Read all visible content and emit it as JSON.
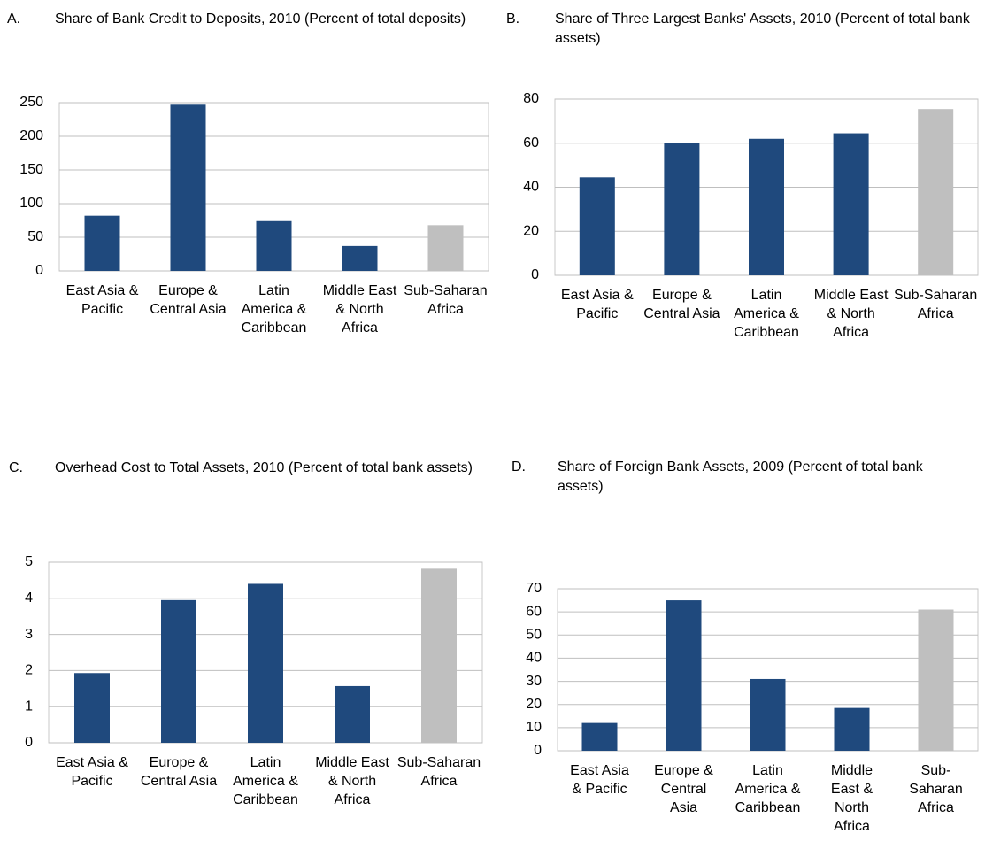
{
  "chart_data": [
    {
      "type": "bar",
      "panel": "A.",
      "title": "Share of Bank Credit to Deposits, 2010 (Percent of total deposits)",
      "categories": [
        "East Asia & Pacific",
        "Europe & Central Asia",
        "Latin America & Caribbean",
        "Middle East & North Africa",
        "Sub-Saharan Africa"
      ],
      "values": [
        82,
        247,
        74,
        37,
        68
      ],
      "colors": [
        "#1f497d",
        "#1f497d",
        "#1f497d",
        "#1f497d",
        "#bfbfbf"
      ],
      "ylim": [
        0,
        250
      ],
      "yticks": [
        0,
        50,
        100,
        150,
        200,
        250
      ],
      "grid": true
    },
    {
      "type": "bar",
      "panel": "B.",
      "title": "Share of Three Largest Banks' Assets, 2010 (Percent of total bank assets)",
      "categories": [
        "East Asia & Pacific",
        "Europe & Central Asia",
        "Latin America & Caribbean",
        "Middle East & North Africa",
        "Sub-Saharan Africa"
      ],
      "values": [
        44.5,
        60,
        62,
        64.5,
        75.5
      ],
      "colors": [
        "#1f497d",
        "#1f497d",
        "#1f497d",
        "#1f497d",
        "#bfbfbf"
      ],
      "ylim": [
        0,
        80
      ],
      "yticks": [
        0,
        20,
        40,
        60,
        80
      ],
      "grid": true
    },
    {
      "type": "bar",
      "panel": "C.",
      "title": "Overhead Cost to Total Assets, 2010 (Percent of total bank assets)",
      "categories": [
        "East Asia & Pacific",
        "Europe & Central Asia",
        "Latin America & Caribbean",
        "Middle East & North Africa",
        "Sub-Saharan Africa"
      ],
      "values": [
        1.93,
        3.95,
        4.4,
        1.57,
        4.82
      ],
      "colors": [
        "#1f497d",
        "#1f497d",
        "#1f497d",
        "#1f497d",
        "#bfbfbf"
      ],
      "ylim": [
        0,
        5
      ],
      "yticks": [
        0,
        1,
        2,
        3,
        4,
        5
      ],
      "grid": true
    },
    {
      "type": "bar",
      "panel": "D.",
      "title": "Share of Foreign Bank Assets, 2009 (Percent of total bank assets)",
      "categories": [
        "East Asia & Pacific",
        "Europe & Central Asia",
        "Latin America & Caribbean",
        "Middle East & North Africa",
        "Sub-Saharan Africa"
      ],
      "values": [
        12,
        65,
        31,
        18.5,
        61
      ],
      "colors": [
        "#1f497d",
        "#1f497d",
        "#1f497d",
        "#1f497d",
        "#bfbfbf"
      ],
      "ylim": [
        0,
        70
      ],
      "yticks": [
        0,
        10,
        20,
        30,
        40,
        50,
        60,
        70
      ],
      "grid": true
    }
  ]
}
